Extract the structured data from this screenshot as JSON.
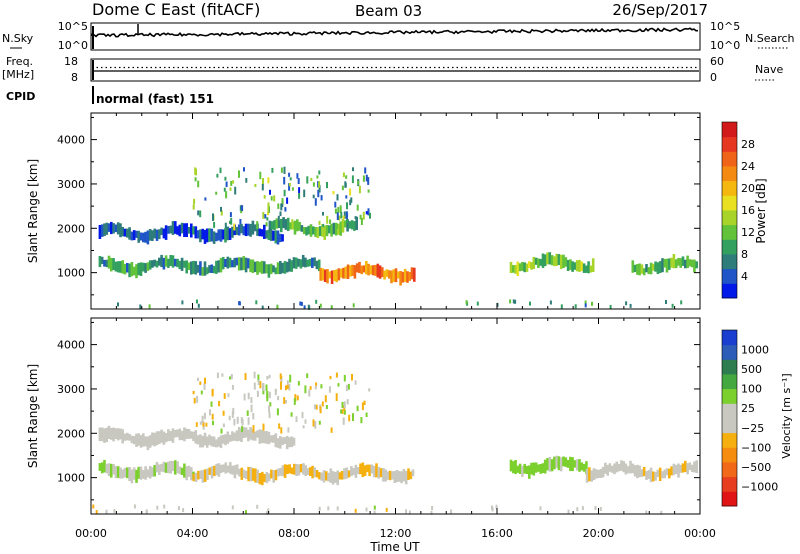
{
  "header": {
    "station": "Dome C East (fitACF)",
    "beam": "Beam 03",
    "date": "26/Sep/2017"
  },
  "top_panels": {
    "nsky": {
      "left_label": "N.Sky",
      "left_ticks": [
        "10^5",
        "10^0"
      ],
      "right_ticks": [
        "10^5",
        "10^0"
      ],
      "right_label": "N.Search"
    },
    "freq": {
      "left_label": "Freq.",
      "left_unit": "[MHz]",
      "left_ticks": [
        "18",
        "8"
      ],
      "right_ticks": [
        "60",
        "0"
      ],
      "right_label": "Nave"
    },
    "cpid": {
      "label": "CPID",
      "value": "normal (fast) 151"
    }
  },
  "chart_data": [
    {
      "id": "power",
      "type": "heatmap",
      "ylabel": "Slant Range [km]",
      "xlabel": "Time UT",
      "xlim": [
        0,
        24
      ],
      "ylim": [
        180,
        4600
      ],
      "x_ticks": [
        "00:00",
        "04:00",
        "08:00",
        "12:00",
        "16:00",
        "20:00",
        "00:00"
      ],
      "y_ticks": [
        1000,
        2000,
        3000,
        4000
      ],
      "colorbar": {
        "label": "Power [dB]",
        "ticks": [
          "4",
          "8",
          "12",
          "16",
          "20",
          "24",
          "28"
        ],
        "colors": [
          "#0018e8",
          "#1f55c6",
          "#2f7d7a",
          "#33a060",
          "#62c23a",
          "#a8d42a",
          "#e8e020",
          "#f5b810",
          "#f58a12",
          "#f0641a",
          "#e63820",
          "#d21a1a"
        ]
      },
      "bands": [
        {
          "range_km": 1900,
          "t_start": 0.3,
          "t_end": 7.5,
          "value_db": 6
        },
        {
          "range_km": 1150,
          "t_start": 0.3,
          "t_end": 9.0,
          "value_db": 10
        },
        {
          "range_km": 1000,
          "t_start": 9.0,
          "t_end": 12.7,
          "value_db": 24
        },
        {
          "range_km": 2000,
          "t_start": 7.0,
          "t_end": 10.5,
          "value_db": 12
        },
        {
          "range_km": 1200,
          "t_start": 16.5,
          "t_end": 19.8,
          "value_db": 14
        },
        {
          "range_km": 1150,
          "t_start": 21.3,
          "t_end": 23.9,
          "value_db": 13
        }
      ]
    },
    {
      "id": "velocity",
      "type": "heatmap",
      "ylabel": "Slant Range [km]",
      "xlabel": "Time UT",
      "xlim": [
        0,
        24
      ],
      "ylim": [
        180,
        4600
      ],
      "x_ticks": [
        "00:00",
        "04:00",
        "08:00",
        "12:00",
        "16:00",
        "20:00",
        "00:00"
      ],
      "y_ticks": [
        1000,
        2000,
        3000,
        4000
      ],
      "colorbar": {
        "label": "Velocity [m s⁻¹]",
        "ticks": [
          "1000",
          "500",
          "100",
          "25",
          "−25",
          "−100",
          "−500",
          "−1000"
        ],
        "colors": [
          "#1a3fd0",
          "#2a5cb8",
          "#2e7d50",
          "#44a840",
          "#7cd02e",
          "#c8c8c0",
          "#c8c8c0",
          "#f5b010",
          "#f58c10",
          "#f06818",
          "#e83e20",
          "#e01414"
        ]
      },
      "bands": [
        {
          "range_km": 1900,
          "t_start": 0.3,
          "t_end": 8.0,
          "value_ms": 0
        },
        {
          "range_km": 1150,
          "t_start": 0.3,
          "t_end": 4.0,
          "value_ms": 150
        },
        {
          "range_km": 1100,
          "t_start": 4.0,
          "t_end": 12.7,
          "value_ms": -150
        },
        {
          "range_km": 1250,
          "t_start": 16.5,
          "t_end": 19.5,
          "value_ms": 200
        },
        {
          "range_km": 1150,
          "t_start": 19.5,
          "t_end": 23.9,
          "value_ms": -120
        }
      ]
    }
  ]
}
